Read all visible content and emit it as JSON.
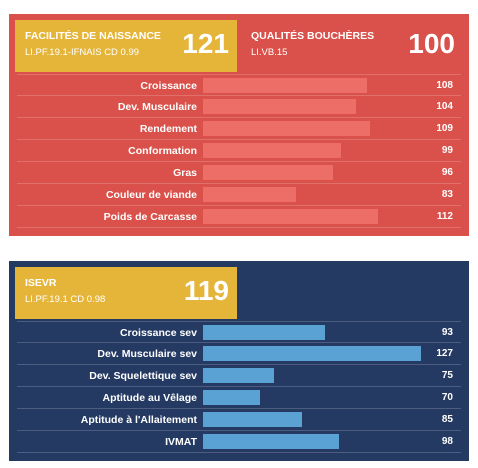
{
  "panel1": {
    "box_left": {
      "label": "FACILITÉS DE NAISSANCE",
      "sub": "LI.PF.19.1-IFNAIS CD 0.99",
      "value": "121"
    },
    "box_right": {
      "label": "QUALITÉS BOUCHÈRES",
      "sub": "LI.VB.15",
      "value": "100"
    },
    "rows": [
      {
        "name": "Croissance",
        "value": 108
      },
      {
        "name": "Dev. Musculaire",
        "value": 104
      },
      {
        "name": "Rendement",
        "value": 109
      },
      {
        "name": "Conformation",
        "value": 99
      },
      {
        "name": "Gras",
        "value": 96
      },
      {
        "name": "Couleur de viande",
        "value": 83
      },
      {
        "name": "Poids de Carcasse",
        "value": 112
      }
    ],
    "colors": {
      "background": "#d9514a",
      "box": "#e5b53a",
      "bar": "#ec6e66"
    }
  },
  "panel2": {
    "box": {
      "label": "ISEVR",
      "sub": "LI.PF.19.1 CD 0.98",
      "value": "119"
    },
    "rows": [
      {
        "name": "Croissance sev",
        "value": 93
      },
      {
        "name": "Dev. Musculaire sev",
        "value": 127
      },
      {
        "name": "Dev. Squelettique sev",
        "value": 75
      },
      {
        "name": "Aptitude au Vêlage",
        "value": 70
      },
      {
        "name": "Aptitude à l'Allaitement",
        "value": 85
      },
      {
        "name": "IVMAT",
        "value": 98
      }
    ],
    "colors": {
      "background": "#253a63",
      "box": "#e5b53a",
      "bar": "#5aa2d4"
    }
  }
}
